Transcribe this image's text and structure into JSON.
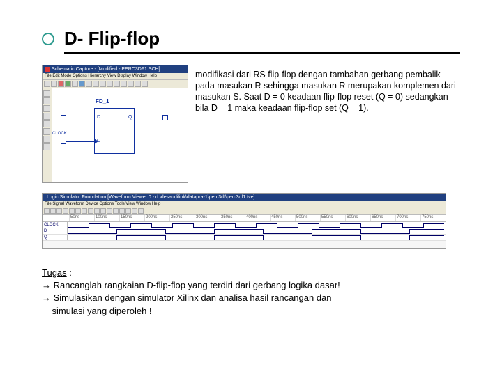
{
  "title": "D- Flip-flop",
  "accent_color": "#2e9b8f",
  "title_fontsize": 26,
  "description": "modifikasi dari RS flip-flop dengan tambahan gerbang pembalik pada masukan R sehingga masukan R merupakan komplemen dari masukan S. Saat       D = 0 keadaan flip-flop reset (Q = 0) sedangkan bila D = 1 maka keadaan flip-flop set (Q = 1).",
  "schematic": {
    "window_title": "Schematic Capture - [Modified - PERC3DF1.SCH]",
    "menu": "File  Edit  Mode  Options  Hierarchy  View  Display  Window  Help",
    "component_label": "FD_1",
    "pins": {
      "D": "D",
      "C": "C",
      "Q": "Q",
      "CLOCK": "CLOCK"
    }
  },
  "simulator": {
    "window_title": "Logic Simulator Foundation  [Waveform Viewer 0 - d:\\desaudilink\\datapra-1\\perc3df\\perc3df1.tve]",
    "menu": "File  Signal  Waveform  Device  Options  Tools  View  Window  Help",
    "time_ticks": [
      "50ns",
      "100ns",
      "150ns",
      "200ns",
      "250ns",
      "300ns",
      "350ns",
      "400ns",
      "450ns",
      "500ns",
      "550ns",
      "600ns",
      "650ns",
      "700ns",
      "750ns"
    ],
    "signals": [
      "CLOCK",
      "D",
      "Q"
    ]
  },
  "tugas": {
    "heading": "Tugas",
    "colon": " :",
    "line1": "→ Rancanglah rangkaian D-flip-flop yang terdiri dari gerbang logika dasar!",
    "line2": "→ Simulasikan dengan simulator Xilinx dan analisa hasil rancangan dan",
    "line3": "    simulasi yang diperoleh !"
  }
}
